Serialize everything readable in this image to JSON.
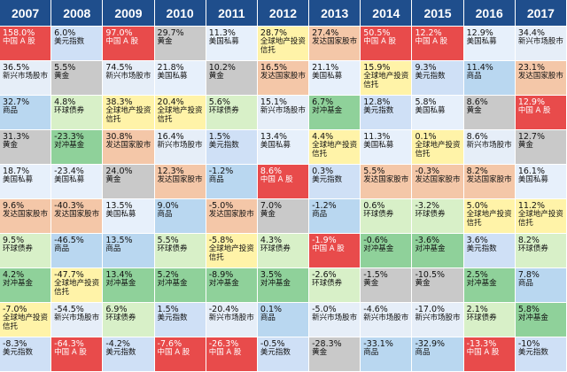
{
  "years": [
    "2007",
    "2008",
    "2009",
    "2010",
    "2011",
    "2012",
    "2013",
    "2014",
    "2015",
    "2016",
    "2017"
  ],
  "palette": {
    "中国A股": "#e84b4b",
    "美元指数": "#cfe0f6",
    "黄金": "#c9c9c9",
    "新兴市场股市": "#e6eef8",
    "对冲基金": "#8fd19a",
    "商品": "#b9d7f0",
    "环球债券": "#d8f0c8",
    "全球地产投资信托": "#fff3a8",
    "美国私募": "#e7f0fb",
    "发达国家股市": "#f4c7a8"
  },
  "table": [
    [
      {
        "value": "158.0%",
        "label": "中国 A 股",
        "asset": "中国A股"
      },
      {
        "value": "36.5%",
        "label": "新兴市场股市",
        "asset": "新兴市场股市"
      },
      {
        "value": "32.7%",
        "label": "商品",
        "asset": "商品"
      },
      {
        "value": "31.3%",
        "label": "黄金",
        "asset": "黄金"
      },
      {
        "value": "18.7%",
        "label": "美国私募",
        "asset": "美国私募"
      },
      {
        "value": "9.6%",
        "label": "发达国家股市",
        "asset": "发达国家股市"
      },
      {
        "value": "9.5%",
        "label": "环球债券",
        "asset": "环球债券"
      },
      {
        "value": "4.2%",
        "label": "对冲基金",
        "asset": "对冲基金"
      },
      {
        "value": "-7.0%",
        "label": "全球地产投资信托",
        "asset": "全球地产投资信托"
      },
      {
        "value": "-8.3%",
        "label": "美元指数",
        "asset": "美元指数"
      }
    ],
    [
      {
        "value": "6.0%",
        "label": "美元指数",
        "asset": "美元指数"
      },
      {
        "value": "5.5%",
        "label": "黄金",
        "asset": "黄金"
      },
      {
        "value": "4.8%",
        "label": "环球债券",
        "asset": "环球债券"
      },
      {
        "value": "-23.3%",
        "label": "对冲基金",
        "asset": "对冲基金"
      },
      {
        "value": "-23.4%",
        "label": "美国私募",
        "asset": "美国私募"
      },
      {
        "value": "-40.3%",
        "label": "发达国家股市",
        "asset": "发达国家股市"
      },
      {
        "value": "-46.5%",
        "label": "商品",
        "asset": "商品"
      },
      {
        "value": "-47.7%",
        "label": "全球地产投资信托",
        "asset": "全球地产投资信托"
      },
      {
        "value": "-54.5%",
        "label": "新兴市场股市",
        "asset": "新兴市场股市"
      },
      {
        "value": "-64.3%",
        "label": "中国 A 股",
        "asset": "中国A股"
      }
    ],
    [
      {
        "value": "97.0%",
        "label": "中国 A 股",
        "asset": "中国A股"
      },
      {
        "value": "74.5%",
        "label": "新兴市场股市",
        "asset": "新兴市场股市"
      },
      {
        "value": "38.3%",
        "label": "全球地产投资信托",
        "asset": "全球地产投资信托"
      },
      {
        "value": "30.8%",
        "label": "发达国家股市",
        "asset": "发达国家股市"
      },
      {
        "value": "24.0%",
        "label": "黄金",
        "asset": "黄金"
      },
      {
        "value": "13.5%",
        "label": "美国私募",
        "asset": "美国私募"
      },
      {
        "value": "13.5%",
        "label": "商品",
        "asset": "商品"
      },
      {
        "value": "13.4%",
        "label": "对冲基金",
        "asset": "对冲基金"
      },
      {
        "value": "6.9%",
        "label": "环球债券",
        "asset": "环球债券"
      },
      {
        "value": "-4.2%",
        "label": "美元指数",
        "asset": "美元指数"
      }
    ],
    [
      {
        "value": "29.7%",
        "label": "黄金",
        "asset": "黄金"
      },
      {
        "value": "21.8%",
        "label": "美国私募",
        "asset": "美国私募"
      },
      {
        "value": "20.4%",
        "label": "全球地产投资信托",
        "asset": "全球地产投资信托"
      },
      {
        "value": "16.4%",
        "label": "新兴市场股市",
        "asset": "新兴市场股市"
      },
      {
        "value": "12.3%",
        "label": "发达国家股市",
        "asset": "发达国家股市"
      },
      {
        "value": "9.0%",
        "label": "商品",
        "asset": "商品"
      },
      {
        "value": "5.5%",
        "label": "环球债券",
        "asset": "环球债券"
      },
      {
        "value": "5.2%",
        "label": "对冲基金",
        "asset": "对冲基金"
      },
      {
        "value": "1.5%",
        "label": "美元指数",
        "asset": "美元指数"
      },
      {
        "value": "-7.6%",
        "label": "中国 A 股",
        "asset": "中国A股"
      }
    ],
    [
      {
        "value": "11.3%",
        "label": "美国私募",
        "asset": "美国私募"
      },
      {
        "value": "10.2%",
        "label": "黄金",
        "asset": "黄金"
      },
      {
        "value": "5.6%",
        "label": "环球债券",
        "asset": "环球债券"
      },
      {
        "value": "1.5%",
        "label": "美元指数",
        "asset": "美元指数"
      },
      {
        "value": "-1.2%",
        "label": "商品",
        "asset": "商品"
      },
      {
        "value": "-5.0%",
        "label": "发达国家股市",
        "asset": "发达国家股市"
      },
      {
        "value": "-5.8%",
        "label": "全球地产投资信托",
        "asset": "全球地产投资信托"
      },
      {
        "value": "-8.9%",
        "label": "对冲基金",
        "asset": "对冲基金"
      },
      {
        "value": "-20.4%",
        "label": "新兴市场股市",
        "asset": "新兴市场股市"
      },
      {
        "value": "-26.3%",
        "label": "中国 A 股",
        "asset": "中国A股"
      }
    ],
    [
      {
        "value": "28.7%",
        "label": "全球地产投资信托",
        "asset": "全球地产投资信托"
      },
      {
        "value": "16.5%",
        "label": "发达国家股市",
        "asset": "发达国家股市"
      },
      {
        "value": "15.1%",
        "label": "新兴市场股市",
        "asset": "新兴市场股市"
      },
      {
        "value": "13.4%",
        "label": "美国私募",
        "asset": "美国私募"
      },
      {
        "value": "8.6%",
        "label": "中国 A 股",
        "asset": "中国A股"
      },
      {
        "value": "7.0%",
        "label": "黄金",
        "asset": "黄金"
      },
      {
        "value": "4.3%",
        "label": "环球债券",
        "asset": "环球债券"
      },
      {
        "value": "3.5%",
        "label": "对冲基金",
        "asset": "对冲基金"
      },
      {
        "value": "0.1%",
        "label": "商品",
        "asset": "商品"
      },
      {
        "value": "-0.5%",
        "label": "美元指数",
        "asset": "美元指数"
      }
    ],
    [
      {
        "value": "27.4%",
        "label": "发达国家股市",
        "asset": "发达国家股市"
      },
      {
        "value": "21.1%",
        "label": "美国私募",
        "asset": "美国私募"
      },
      {
        "value": "6.7%",
        "label": "对冲基金",
        "asset": "对冲基金"
      },
      {
        "value": "4.4%",
        "label": "全球地产投资信托",
        "asset": "全球地产投资信托"
      },
      {
        "value": "0.3%",
        "label": "美元指数",
        "asset": "美元指数"
      },
      {
        "value": "-1.2%",
        "label": "商品",
        "asset": "商品"
      },
      {
        "value": "-1.9%",
        "label": "中国 A 股",
        "asset": "中国A股"
      },
      {
        "value": "-2.6%",
        "label": "环球债券",
        "asset": "环球债券"
      },
      {
        "value": "-5.0%",
        "label": "新兴市场股市",
        "asset": "新兴市场股市"
      },
      {
        "value": "-28.3%",
        "label": "黄金",
        "asset": "黄金"
      }
    ],
    [
      {
        "value": "50.5%",
        "label": "中国 A 股",
        "asset": "中国A股"
      },
      {
        "value": "15.9%",
        "label": "全球地产投资信托",
        "asset": "全球地产投资信托"
      },
      {
        "value": "12.8%",
        "label": "美元指数",
        "asset": "美元指数"
      },
      {
        "value": "11.3%",
        "label": "美国私募",
        "asset": "美国私募"
      },
      {
        "value": "5.5%",
        "label": "发达国家股市",
        "asset": "发达国家股市"
      },
      {
        "value": "0.6%",
        "label": "环球债券",
        "asset": "环球债券"
      },
      {
        "value": "-0.6%",
        "label": "对冲基金",
        "asset": "对冲基金"
      },
      {
        "value": "-1.5%",
        "label": "黄金",
        "asset": "黄金"
      },
      {
        "value": "-4.6%",
        "label": "新兴市场股市",
        "asset": "新兴市场股市"
      },
      {
        "value": "-33.1%",
        "label": "商品",
        "asset": "商品"
      }
    ],
    [
      {
        "value": "12.2%",
        "label": "中国 A 股",
        "asset": "中国A股"
      },
      {
        "value": "9.3%",
        "label": "美元指数",
        "asset": "美元指数"
      },
      {
        "value": "5.8%",
        "label": "美国私募",
        "asset": "美国私募"
      },
      {
        "value": "0.1%",
        "label": "全球地产投资信托",
        "asset": "全球地产投资信托"
      },
      {
        "value": "-0.3%",
        "label": "发达国家股市",
        "asset": "发达国家股市"
      },
      {
        "value": "-3.2%",
        "label": "环球债券",
        "asset": "环球债券"
      },
      {
        "value": "-3.6%",
        "label": "对冲基金",
        "asset": "对冲基金"
      },
      {
        "value": "-10.5%",
        "label": "黄金",
        "asset": "黄金"
      },
      {
        "value": "-17.0%",
        "label": "新兴市场股市",
        "asset": "新兴市场股市"
      },
      {
        "value": "-32.9%",
        "label": "商品",
        "asset": "商品"
      }
    ],
    [
      {
        "value": "12.9%",
        "label": "美国私募",
        "asset": "美国私募"
      },
      {
        "value": "11.4%",
        "label": "商品",
        "asset": "商品"
      },
      {
        "value": "8.6%",
        "label": "黄金",
        "asset": "黄金"
      },
      {
        "value": "8.6%",
        "label": "新兴市场股市",
        "asset": "新兴市场股市"
      },
      {
        "value": "8.2%",
        "label": "发达国家股市",
        "asset": "发达国家股市"
      },
      {
        "value": "5.0%",
        "label": "全球地产投资信托",
        "asset": "全球地产投资信托"
      },
      {
        "value": "3.6%",
        "label": "美元指数",
        "asset": "美元指数"
      },
      {
        "value": "2.5%",
        "label": "对冲基金",
        "asset": "对冲基金"
      },
      {
        "value": "2.1%",
        "label": "环球债券",
        "asset": "环球债券"
      },
      {
        "value": "-13.3%",
        "label": "中国 A 股",
        "asset": "中国A股"
      }
    ],
    [
      {
        "value": "34.4%",
        "label": "新兴市场股市",
        "asset": "新兴市场股市"
      },
      {
        "value": "23.1%",
        "label": "发达国家股市",
        "asset": "发达国家股市"
      },
      {
        "value": "12.9%",
        "label": "中国 A 股",
        "asset": "中国A股"
      },
      {
        "value": "12.7%",
        "label": "黄金",
        "asset": "黄金"
      },
      {
        "value": "16.1%",
        "label": "美国私募",
        "asset": "美国私募"
      },
      {
        "value": "11.2%",
        "label": "全球地产投资信托",
        "asset": "全球地产投资信托"
      },
      {
        "value": "8.2%",
        "label": "环球债券",
        "asset": "环球债券"
      },
      {
        "value": "7.8%",
        "label": "商品",
        "asset": "商品"
      },
      {
        "value": "5.8%",
        "label": "对冲基金",
        "asset": "对冲基金"
      },
      {
        "value": "-10%",
        "label": "美元指数",
        "asset": "美元指数"
      }
    ]
  ]
}
